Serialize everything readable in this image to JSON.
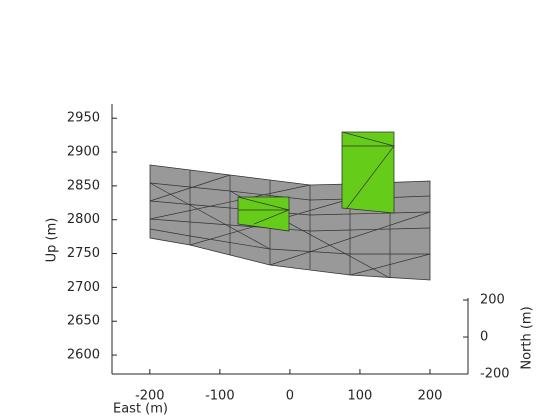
{
  "chart_data": {
    "type": "surface3d",
    "xlabel": "East (m)",
    "ylabel": "Up (m)",
    "zlabel": "North (m)",
    "xlim": [
      -254,
      250
    ],
    "xticks": [
      -200,
      -100,
      0,
      100,
      200
    ],
    "ylim": [
      2572,
      2971
    ],
    "yticks": [
      2600,
      2650,
      2700,
      2750,
      2800,
      2850,
      2900,
      2950
    ],
    "zlim": [
      -200,
      211
    ],
    "zticks": [
      -200,
      0,
      200
    ],
    "surface_color": "#999999",
    "patch_color": "#66cc1a"
  }
}
